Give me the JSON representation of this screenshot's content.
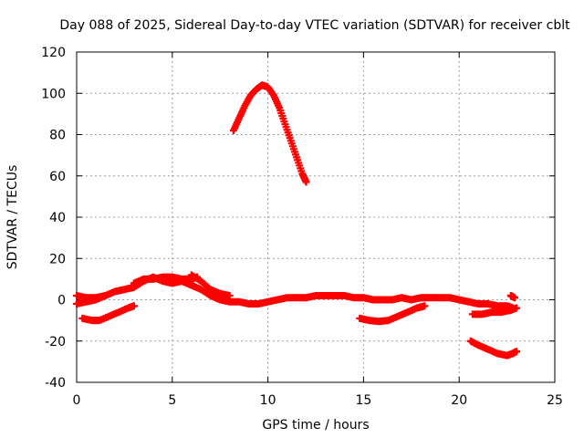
{
  "chart_data": {
    "type": "scatter",
    "title": "Day 088 of 2025, Sidereal Day-to-day VTEC variation (SDTVAR) for receiver cblt",
    "xlabel": "GPS time / hours",
    "ylabel": "SDTVAR / TECUs",
    "xlim": [
      0,
      25
    ],
    "ylim": [
      -40,
      120
    ],
    "xticks": [
      0,
      5,
      10,
      15,
      20,
      25
    ],
    "yticks": [
      -40,
      -20,
      0,
      20,
      40,
      60,
      80,
      100,
      120
    ],
    "grid": true,
    "marker": "plus",
    "series_color": "#ff0000",
    "series": [
      {
        "name": "arc-main-1",
        "points": [
          [
            0,
            -2
          ],
          [
            0.5,
            -1
          ],
          [
            1,
            0
          ],
          [
            1.5,
            2
          ],
          [
            2,
            4
          ],
          [
            2.5,
            5
          ],
          [
            3,
            6
          ],
          [
            3.5,
            9
          ],
          [
            4,
            11
          ],
          [
            4.5,
            9
          ],
          [
            5,
            8
          ],
          [
            5.5,
            9
          ],
          [
            6,
            7
          ],
          [
            6.5,
            5
          ],
          [
            7,
            2
          ],
          [
            7.5,
            0
          ],
          [
            8,
            -1
          ],
          [
            8.5,
            -1
          ],
          [
            9,
            -2
          ],
          [
            9.5,
            -2
          ],
          [
            10,
            -1
          ],
          [
            10.5,
            0
          ],
          [
            11,
            1
          ],
          [
            11.5,
            1
          ],
          [
            12,
            1
          ]
        ]
      },
      {
        "name": "arc-main-2",
        "points": [
          [
            12,
            1
          ],
          [
            12.5,
            2
          ],
          [
            13,
            2
          ],
          [
            13.5,
            2
          ],
          [
            14,
            2
          ],
          [
            14.5,
            1
          ],
          [
            15,
            1
          ],
          [
            15.5,
            0
          ],
          [
            16,
            0
          ],
          [
            16.5,
            0
          ],
          [
            17,
            1
          ],
          [
            17.5,
            0
          ],
          [
            18,
            1
          ],
          [
            18.5,
            1
          ],
          [
            19,
            1
          ],
          [
            19.5,
            1
          ],
          [
            20,
            0
          ],
          [
            20.5,
            -1
          ],
          [
            21,
            -2
          ],
          [
            21.5,
            -2
          ],
          [
            22,
            -3
          ],
          [
            22.5,
            -3
          ],
          [
            22.8,
            -4
          ]
        ]
      },
      {
        "name": "arc-upper-left",
        "points": [
          [
            0,
            2
          ],
          [
            0.5,
            1
          ],
          [
            1,
            1
          ],
          [
            1.5,
            2
          ]
        ]
      },
      {
        "name": "arc-bump",
        "points": [
          [
            3,
            8
          ],
          [
            3.5,
            10
          ],
          [
            4,
            10
          ],
          [
            4.5,
            11
          ],
          [
            5,
            11
          ],
          [
            5.5,
            10
          ],
          [
            6,
            10
          ],
          [
            6.3,
            11
          ]
        ]
      },
      {
        "name": "arc-late",
        "points": [
          [
            6,
            12
          ],
          [
            6.5,
            9
          ],
          [
            7,
            5
          ],
          [
            7.5,
            3
          ],
          [
            8,
            2
          ]
        ]
      },
      {
        "name": "arc-low-1",
        "points": [
          [
            0.3,
            -9
          ],
          [
            0.8,
            -10
          ],
          [
            1.2,
            -10
          ],
          [
            1.7,
            -8
          ],
          [
            2.2,
            -6
          ],
          [
            2.7,
            -4
          ],
          [
            3,
            -3
          ]
        ]
      },
      {
        "name": "arc-low-2",
        "points": [
          [
            14.8,
            -9
          ],
          [
            15.3,
            -10
          ],
          [
            15.8,
            -10.5
          ],
          [
            16.3,
            -10
          ],
          [
            16.8,
            -8
          ],
          [
            17.3,
            -6
          ],
          [
            17.8,
            -4
          ],
          [
            18.2,
            -3
          ]
        ]
      },
      {
        "name": "arc-low-3",
        "points": [
          [
            20.7,
            -7
          ],
          [
            21.2,
            -7
          ],
          [
            21.7,
            -6
          ],
          [
            22.2,
            -6
          ],
          [
            22.7,
            -5
          ],
          [
            23,
            -4
          ]
        ]
      },
      {
        "name": "arc-tail",
        "points": [
          [
            22.7,
            2
          ],
          [
            22.9,
            1
          ]
        ]
      },
      {
        "name": "arc-high",
        "points": [
          [
            8.2,
            82
          ],
          [
            8.5,
            88
          ],
          [
            8.8,
            94
          ],
          [
            9.1,
            99
          ],
          [
            9.4,
            102
          ],
          [
            9.7,
            104
          ],
          [
            10,
            103
          ],
          [
            10.3,
            99
          ],
          [
            10.6,
            93
          ],
          [
            10.9,
            85
          ],
          [
            11.2,
            77
          ],
          [
            11.5,
            69
          ],
          [
            11.8,
            61
          ],
          [
            12,
            57
          ]
        ]
      },
      {
        "name": "arc-neg-end",
        "points": [
          [
            20.6,
            -20
          ],
          [
            21,
            -22
          ],
          [
            21.5,
            -24
          ],
          [
            22,
            -26
          ],
          [
            22.5,
            -27
          ],
          [
            22.8,
            -26
          ],
          [
            23,
            -25
          ]
        ]
      }
    ]
  }
}
